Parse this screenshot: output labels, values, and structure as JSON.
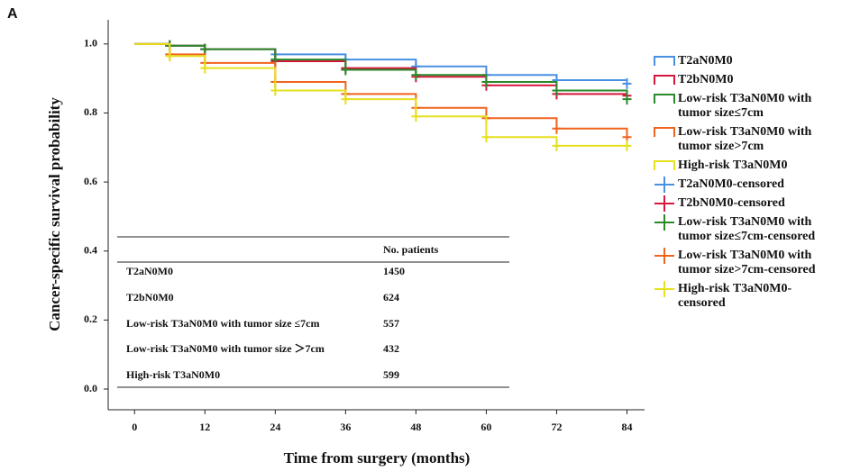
{
  "chart_data": {
    "type": "km",
    "panel": "A",
    "x_label": "Time from surgery (months)",
    "y_label": "Cancer-specific survival probability",
    "xlim": [
      -4.5,
      87
    ],
    "ylim": [
      -0.06,
      1.07
    ],
    "xticks": [
      0,
      12,
      24,
      36,
      48,
      60,
      72,
      84
    ],
    "yticks": [
      {
        "value": 0,
        "label": "0.0"
      },
      {
        "value": 0.2,
        "label": "0.2"
      },
      {
        "value": 0.4,
        "label": "0.4"
      },
      {
        "value": 0.6,
        "label": "0.6"
      },
      {
        "value": 0.8,
        "label": "0.8"
      },
      {
        "value": 1,
        "label": "1.0"
      }
    ],
    "series": [
      {
        "name": [
          "T2aN0M0"
        ],
        "censored_name": [
          "T2aN0M0-censored"
        ],
        "color": "#4a90e2",
        "x": [
          0,
          6,
          12,
          24,
          36,
          48,
          60,
          72,
          84
        ],
        "values": [
          1,
          0.995,
          0.985,
          0.97,
          0.955,
          0.935,
          0.91,
          0.895,
          0.885
        ]
      },
      {
        "name": [
          "T2bN0M0"
        ],
        "censored_name": [
          "T2bN0M0-censored"
        ],
        "color": "#d6163c",
        "x": [
          0,
          6,
          12,
          24,
          36,
          48,
          60,
          72,
          84
        ],
        "values": [
          1,
          0.995,
          0.985,
          0.95,
          0.93,
          0.905,
          0.88,
          0.855,
          0.85
        ]
      },
      {
        "name": [
          "Low-risk T3aN0M0 with",
          "tumor size≤7cm"
        ],
        "censored_name": [
          "Low-risk T3aN0M0 with",
          "tumor size≤7cm-censored"
        ],
        "color": "#2a8a2a",
        "x": [
          0,
          6,
          12,
          24,
          36,
          48,
          60,
          72,
          84
        ],
        "values": [
          1,
          0.995,
          0.985,
          0.955,
          0.925,
          0.91,
          0.89,
          0.865,
          0.84
        ]
      },
      {
        "name": [
          "Low-risk T3aN0M0 with",
          "tumor size>7cm"
        ],
        "censored_name": [
          "Low-risk T3aN0M0 with",
          "tumor size>7cm-censored"
        ],
        "color": "#f0641e",
        "x": [
          0,
          6,
          12,
          24,
          36,
          48,
          60,
          72,
          84
        ],
        "values": [
          1,
          0.97,
          0.945,
          0.89,
          0.855,
          0.815,
          0.785,
          0.755,
          0.73
        ]
      },
      {
        "name": [
          "High-risk T3aN0M0"
        ],
        "censored_name": [
          "High-risk T3aN0M0-",
          "censored"
        ],
        "color": "#e6e01e",
        "x": [
          0,
          6,
          12,
          24,
          36,
          48,
          60,
          72,
          84
        ],
        "values": [
          1,
          0.965,
          0.93,
          0.865,
          0.84,
          0.79,
          0.73,
          0.705,
          0.705
        ]
      }
    ],
    "table": {
      "header": "No. patients",
      "rows": [
        [
          "T2aN0M0",
          "1450"
        ],
        [
          "T2bN0M0",
          "624"
        ],
        [
          "Low-risk T3aN0M0 with tumor size ≤7cm",
          "557"
        ],
        [
          "Low-risk T3aN0M0 with tumor size ＞7cm",
          "432"
        ],
        [
          "High-risk T3aN0M0",
          "599"
        ]
      ]
    }
  }
}
